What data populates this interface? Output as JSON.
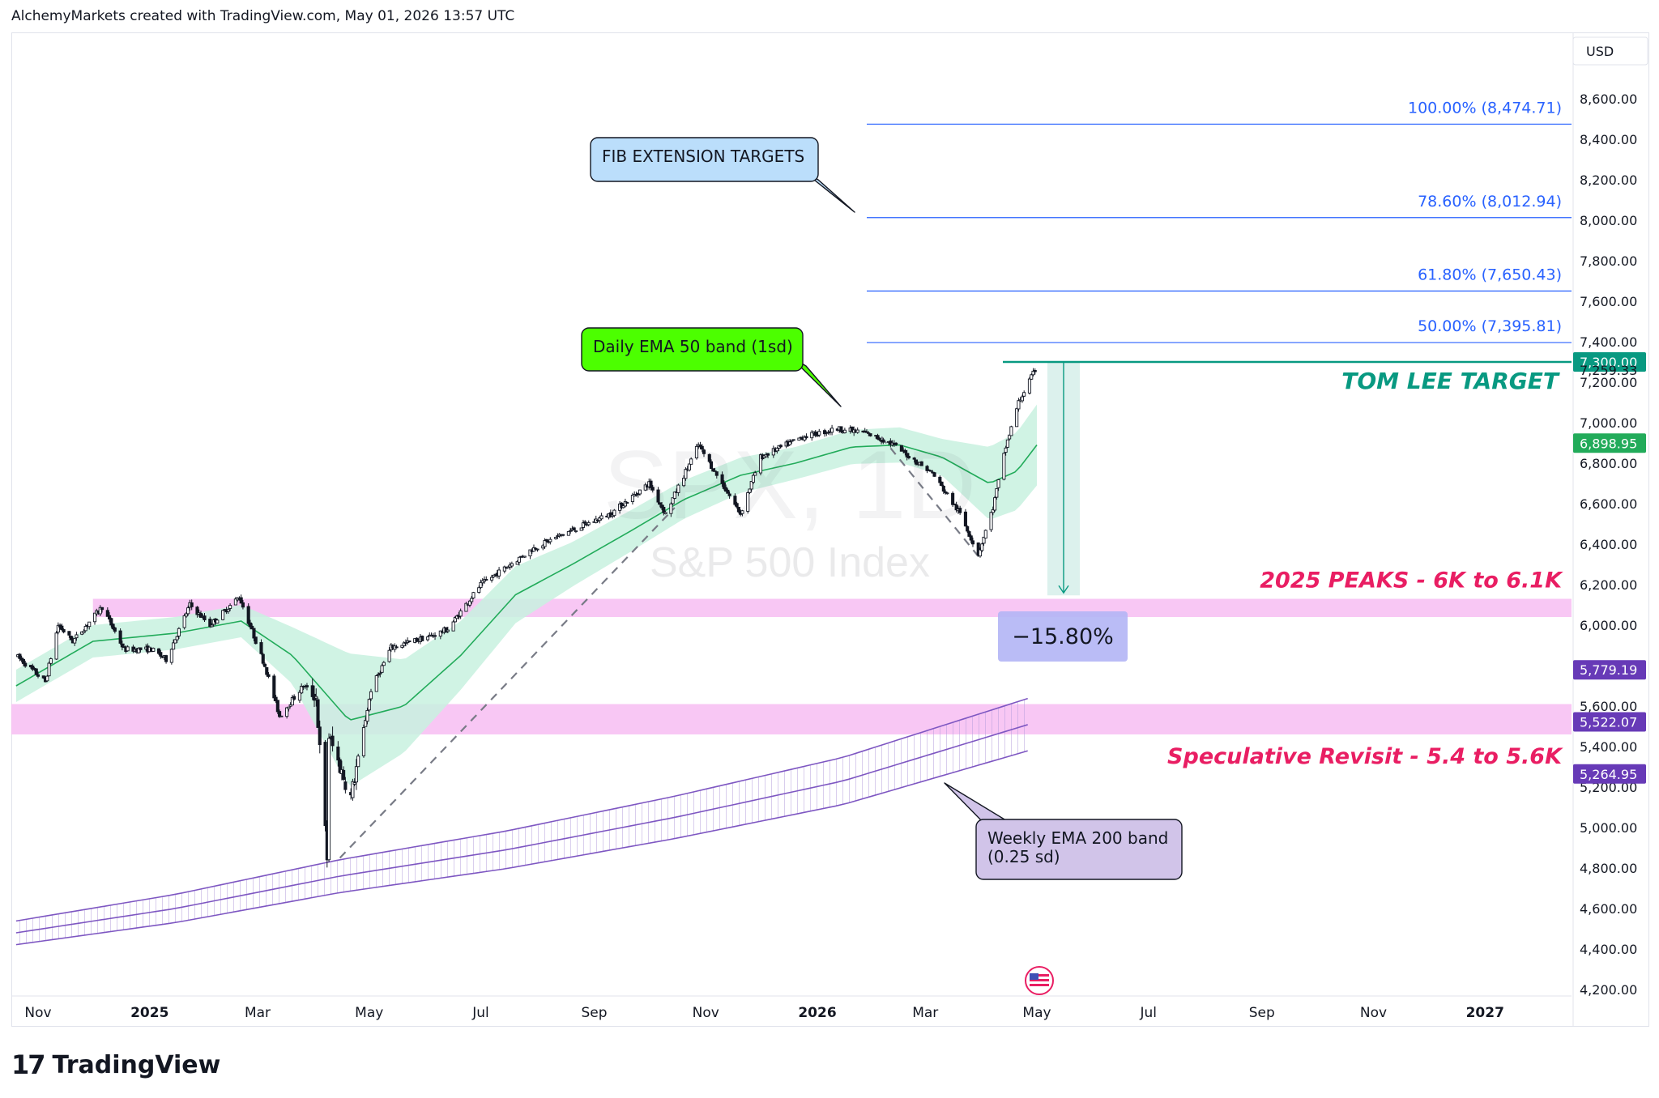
{
  "header": {
    "text": "AlchemyMarkets created with TradingView.com, May 01, 2026 13:57 UTC"
  },
  "footer": {
    "brand": "TradingView"
  },
  "chart_data": {
    "type": "candlestick",
    "title": "S&P 500 Index",
    "watermark": "S&P 500 Index",
    "currency": "USD",
    "y_range": [
      4100,
      8800
    ],
    "y_ticks": [
      "4,200.00",
      "4,400.00",
      "4,600.00",
      "4,800.00",
      "5,000.00",
      "5,200.00",
      "5,400.00",
      "5,600.00",
      "5,800.00",
      "6,000.00",
      "6,200.00",
      "6,400.00",
      "6,600.00",
      "6,800.00",
      "7,000.00",
      "7,200.00",
      "7,400.00",
      "7,600.00",
      "7,800.00",
      "8,000.00",
      "8,200.00",
      "8,400.00",
      "8,600.00"
    ],
    "x_ticks": [
      {
        "label": "Nov",
        "date": "2024-11-01",
        "bold": false
      },
      {
        "label": "2025",
        "date": "2025-01-01",
        "bold": true
      },
      {
        "label": "Mar",
        "date": "2025-03-01",
        "bold": false
      },
      {
        "label": "May",
        "date": "2025-05-01",
        "bold": false
      },
      {
        "label": "Jul",
        "date": "2025-07-01",
        "bold": false
      },
      {
        "label": "Sep",
        "date": "2025-09-01",
        "bold": false
      },
      {
        "label": "Nov",
        "date": "2025-11-01",
        "bold": false
      },
      {
        "label": "2026",
        "date": "2026-01-01",
        "bold": true
      },
      {
        "label": "Mar",
        "date": "2026-03-01",
        "bold": false
      },
      {
        "label": "May",
        "date": "2026-05-01",
        "bold": false
      },
      {
        "label": "Jul",
        "date": "2026-07-01",
        "bold": false
      },
      {
        "label": "Sep",
        "date": "2026-09-01",
        "bold": false
      },
      {
        "label": "Nov",
        "date": "2026-11-01",
        "bold": false
      },
      {
        "label": "2027",
        "date": "2027-01-01",
        "bold": true
      }
    ],
    "price_path": [
      [
        "2024-10-20",
        5850
      ],
      [
        "2024-11-05",
        5720
      ],
      [
        "2024-11-12",
        6000
      ],
      [
        "2024-11-20",
        5920
      ],
      [
        "2024-12-06",
        6090
      ],
      [
        "2024-12-18",
        5880
      ],
      [
        "2025-01-02",
        5880
      ],
      [
        "2025-01-10",
        5830
      ],
      [
        "2025-01-23",
        6100
      ],
      [
        "2025-02-03",
        6000
      ],
      [
        "2025-02-19",
        6140
      ],
      [
        "2025-03-05",
        5800
      ],
      [
        "2025-03-13",
        5550
      ],
      [
        "2025-03-26",
        5700
      ],
      [
        "2025-04-02",
        5650
      ],
      [
        "2025-04-08",
        4850
      ],
      [
        "2025-04-09",
        5450
      ],
      [
        "2025-04-21",
        5150
      ],
      [
        "2025-05-02",
        5680
      ],
      [
        "2025-05-13",
        5890
      ],
      [
        "2025-06-05",
        5950
      ],
      [
        "2025-06-13",
        5980
      ],
      [
        "2025-07-01",
        6200
      ],
      [
        "2025-07-30",
        6380
      ],
      [
        "2025-08-15",
        6450
      ],
      [
        "2025-09-10",
        6550
      ],
      [
        "2025-10-01",
        6700
      ],
      [
        "2025-10-10",
        6550
      ],
      [
        "2025-10-28",
        6890
      ],
      [
        "2025-11-20",
        6550
      ],
      [
        "2025-12-01",
        6830
      ],
      [
        "2025-12-24",
        6930
      ],
      [
        "2026-01-12",
        6970
      ],
      [
        "2026-01-27",
        6950
      ],
      [
        "2026-02-10",
        6900
      ],
      [
        "2026-03-05",
        6750
      ],
      [
        "2026-03-20",
        6550
      ],
      [
        "2026-03-30",
        6350
      ],
      [
        "2026-04-07",
        6580
      ],
      [
        "2026-04-14",
        6880
      ],
      [
        "2026-04-21",
        7100
      ],
      [
        "2026-04-30",
        7259.33
      ]
    ],
    "ema50_path": [
      [
        "2024-10-20",
        5700
      ],
      [
        "2024-12-01",
        5920
      ],
      [
        "2025-01-15",
        5960
      ],
      [
        "2025-02-20",
        6020
      ],
      [
        "2025-03-20",
        5850
      ],
      [
        "2025-04-20",
        5530
      ],
      [
        "2025-05-20",
        5600
      ],
      [
        "2025-06-20",
        5850
      ],
      [
        "2025-07-20",
        6150
      ],
      [
        "2025-08-20",
        6300
      ],
      [
        "2025-09-20",
        6460
      ],
      [
        "2025-10-20",
        6620
      ],
      [
        "2025-11-20",
        6740
      ],
      [
        "2025-12-20",
        6800
      ],
      [
        "2026-01-20",
        6880
      ],
      [
        "2026-02-15",
        6890
      ],
      [
        "2026-03-10",
        6830
      ],
      [
        "2026-04-05",
        6700
      ],
      [
        "2026-04-20",
        6760
      ],
      [
        "2026-05-01",
        6890
      ]
    ],
    "ema50_sd": [
      [
        "2024-10-20",
        80
      ],
      [
        "2025-02-20",
        80
      ],
      [
        "2025-03-20",
        140
      ],
      [
        "2025-04-20",
        330
      ],
      [
        "2025-05-20",
        230
      ],
      [
        "2025-06-20",
        170
      ],
      [
        "2025-08-20",
        110
      ],
      [
        "2025-12-20",
        80
      ],
      [
        "2026-03-10",
        90
      ],
      [
        "2026-04-05",
        180
      ],
      [
        "2026-05-01",
        200
      ]
    ],
    "weekly_ema200_path": [
      [
        "2024-10-20",
        4480
      ],
      [
        "2025-01-15",
        4600
      ],
      [
        "2025-04-15",
        4760
      ],
      [
        "2025-07-15",
        4890
      ],
      [
        "2025-10-15",
        5050
      ],
      [
        "2026-01-15",
        5230
      ],
      [
        "2026-05-01",
        5522.07
      ]
    ],
    "weekly_ema200_upper_end": "5,779.19",
    "weekly_ema200_lower_end": "5,264.95",
    "price_labels": [
      {
        "text": "7,300.00",
        "value": 7300,
        "bg": "#089981"
      },
      {
        "text": "7,259.33",
        "value": 7259.33,
        "bg": "none"
      },
      {
        "text": "6,898.95",
        "value": 6898.95,
        "bg": "#22ab5a"
      },
      {
        "text": "5,779.19",
        "value": 5779.19,
        "bg": "#673ab7"
      },
      {
        "text": "5,522.07",
        "value": 5522.07,
        "bg": "#673ab7"
      },
      {
        "text": "5,264.95",
        "value": 5264.95,
        "bg": "#673ab7"
      }
    ],
    "fib_levels": [
      {
        "label": "100.00% (8,474.71)",
        "value": 8474.71
      },
      {
        "label": "78.60% (8,012.94)",
        "value": 8012.94
      },
      {
        "label": "61.80% (7,650.43)",
        "value": 7650.43
      },
      {
        "label": "50.00% (7,395.81)",
        "value": 7395.81
      }
    ],
    "zones": [
      {
        "label": "2025 PEAKS - 6K to 6.1K",
        "low": 6040,
        "high": 6130
      },
      {
        "label": "Speculative Revisit - 5.4 to 5.6K",
        "low": 5460,
        "high": 5610
      }
    ],
    "target": {
      "label": "TOM LEE TARGET",
      "value": 7300
    },
    "measure": {
      "label": "−15.80%",
      "from": 7300,
      "to": 6147
    },
    "callouts": {
      "fib": "FIB EXTENSION TARGETS",
      "ema50": "Daily EMA 50 band (1sd)",
      "ema200_line1": "Weekly EMA 200 band",
      "ema200_line2": "(0.25 sd)"
    },
    "colors": {
      "up": "#131722",
      "down": "#131722",
      "ema50_band": "#c8f1df",
      "ema50_line": "#22ab5a",
      "ema200": "#7e57c2",
      "fib": "#2962ff",
      "fib_text": "#2962ff",
      "zone": "#f7bdf2",
      "zone_text": "#e91e63",
      "target": "#089981",
      "measure_box": "#b3b5f5",
      "callout_fib": "#bbdefb",
      "callout_ema50": "#4cff00",
      "callout_ema200": "#d1c4e9"
    }
  }
}
